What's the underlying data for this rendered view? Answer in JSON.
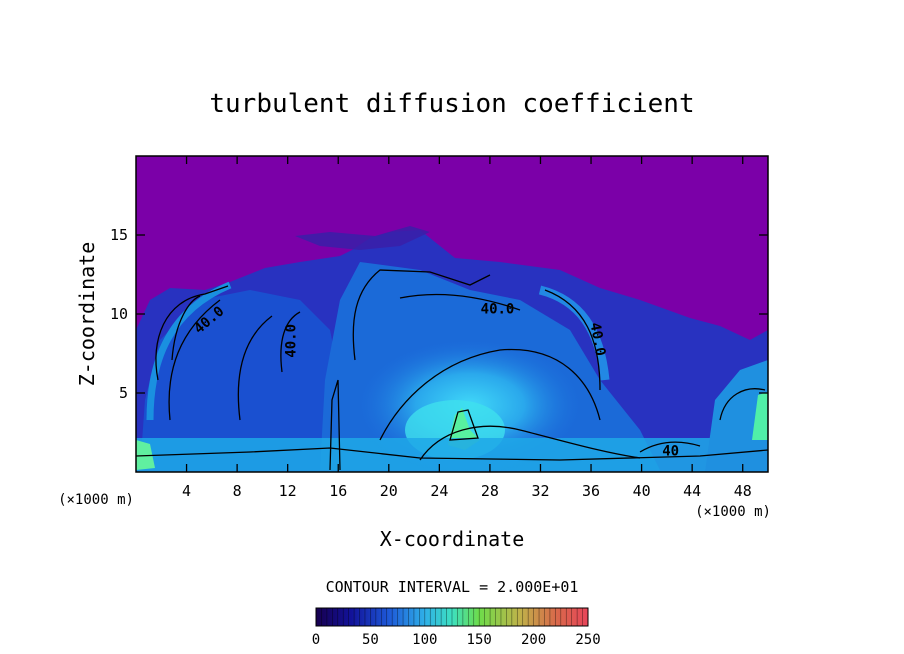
{
  "chart_data": {
    "type": "heatmap",
    "title": "turbulent diffusion coefficient",
    "xlabel": "X-coordinate",
    "ylabel": "Z-coordinate",
    "x_unit": "(×1000 m)",
    "y_unit": "(×1000 m)",
    "xlim": [
      0,
      50
    ],
    "ylim": [
      0,
      20
    ],
    "x_ticks": [
      4,
      8,
      12,
      16,
      20,
      24,
      28,
      32,
      36,
      40,
      44,
      48
    ],
    "y_ticks": [
      5,
      10,
      15
    ],
    "contour_interval_text": "CONTOUR INTERVAL = 2.000E+01",
    "contour_labels": [
      {
        "text": "40.0",
        "x": 5.8,
        "y": 9.6,
        "rotate": -40
      },
      {
        "text": "40.0",
        "x": 12.3,
        "y": 8.3,
        "rotate": -90
      },
      {
        "text": "40.0",
        "x": 28.6,
        "y": 10.3,
        "rotate": 0
      },
      {
        "text": "40.0",
        "x": 36.5,
        "y": 8.4,
        "rotate": 80
      },
      {
        "text": "40",
        "x": 42.3,
        "y": 1.3,
        "rotate": 0
      }
    ],
    "colorbar": {
      "min": 0,
      "max": 250,
      "ticks": [
        0,
        50,
        100,
        150,
        200,
        250
      ],
      "colors": [
        "#17004f",
        "#12129a",
        "#1e5ad8",
        "#2fb0e8",
        "#3de0c0",
        "#6edc4a",
        "#c0b24a",
        "#d86a4a",
        "#e8455a"
      ]
    },
    "colors": {
      "background": "#7b00a8",
      "low": "#2030c8",
      "mid": "#1878e0",
      "high": "#30c8f0",
      "peak": "#58f0a0",
      "contour": "#000000"
    }
  }
}
